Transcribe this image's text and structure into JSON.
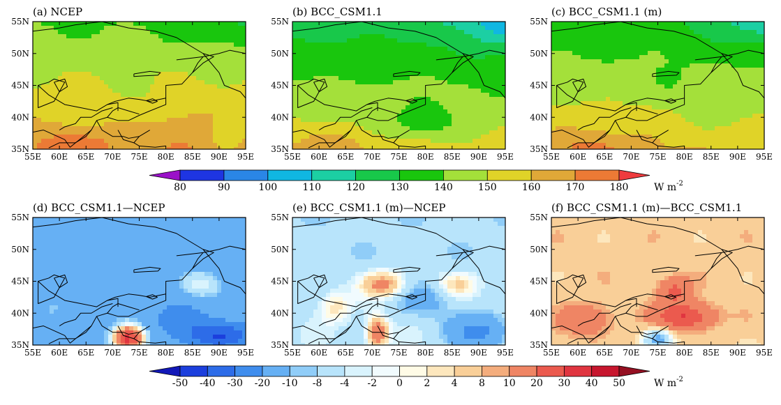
{
  "panels": [
    {
      "id": "a",
      "title": "(a)  NCEP",
      "field": "abs",
      "params": {
        "base": 151,
        "lat": -1.25,
        "cold": 10,
        "hot": 14,
        "spec": [
          [
            83,
            37,
            6,
            5,
            7
          ],
          [
            91,
            37,
            3,
            2.5,
            -6
          ],
          [
            74,
            43,
            4,
            3,
            -4
          ]
        ],
        "seed": 1.3
      }
    },
    {
      "id": "b",
      "title": "(b)  BCC_CSM1.1",
      "field": "abs",
      "params": {
        "base": 141,
        "lat": -1.55,
        "cold": 22,
        "hot": 10,
        "spec": [
          [
            80,
            39,
            9,
            3,
            -14
          ],
          [
            93,
            45,
            4,
            3,
            -5
          ]
        ],
        "seed": 2.1
      }
    },
    {
      "id": "c",
      "title": "(c)  BCC_CSM1.1 (m)",
      "field": "abs",
      "params": {
        "base": 146,
        "lat": -1.45,
        "cold": 18,
        "hot": 12,
        "spec": [
          [
            88,
            41,
            10,
            5,
            -6
          ],
          [
            78,
            45,
            5,
            3,
            -4
          ]
        ],
        "seed": 3.7
      }
    },
    {
      "id": "d",
      "title": "(d)  BCC_CSM1.1—NCEP",
      "field": "diff",
      "params": {
        "base": -15,
        "lat": 0,
        "cold": 0,
        "hot": 0,
        "spec": [
          [
            87,
            44.5,
            4,
            2.2,
            13
          ],
          [
            73,
            36,
            3,
            2,
            48
          ],
          [
            90,
            36.5,
            6,
            2,
            -25
          ],
          [
            60,
            41,
            4,
            3,
            5
          ],
          [
            83,
            39,
            6,
            2.5,
            -8
          ]
        ],
        "seed": 4.2
      }
    },
    {
      "id": "e",
      "title": "(e)  BCC_CSM1.1 (m)—NCEP",
      "field": "diff",
      "params": {
        "base": -6,
        "lat": -0.1,
        "cold": 0,
        "hot": 0,
        "spec": [
          [
            72,
            44.5,
            4,
            2,
            18
          ],
          [
            86,
            44.5,
            4,
            2,
            10
          ],
          [
            63,
            41,
            3,
            2.5,
            9
          ],
          [
            71,
            37,
            2,
            2.5,
            22
          ],
          [
            90,
            37,
            5,
            2.5,
            -18
          ],
          [
            80,
            42,
            6,
            3,
            -6
          ]
        ],
        "seed": 5.9
      }
    },
    {
      "id": "f",
      "title": "(f)  BCC_CSM1.1 (m)—BCC_CSM1.1",
      "field": "diff",
      "params": {
        "base": 6,
        "lat": 0,
        "cold": 0,
        "hot": 0,
        "spec": [
          [
            80,
            39.5,
            5,
            2,
            25
          ],
          [
            78,
            43.5,
            3,
            2,
            16
          ],
          [
            62,
            39,
            5,
            2.5,
            10
          ],
          [
            75,
            36,
            3,
            1.8,
            -18
          ],
          [
            92,
            36,
            4,
            2,
            -2
          ]
        ],
        "seed": 7.1
      }
    }
  ],
  "axes": {
    "xticks": [
      "55E",
      "60E",
      "65E",
      "70E",
      "75E",
      "80E",
      "85E",
      "90E",
      "95E"
    ],
    "yticks": [
      "55N",
      "50N",
      "45N",
      "40N",
      "35N"
    ],
    "lon_range": [
      55,
      95
    ],
    "lat_range": [
      35,
      55
    ]
  },
  "colorbar_abs": {
    "labels": [
      "80",
      "90",
      "100",
      "110",
      "120",
      "130",
      "140",
      "150",
      "160",
      "170",
      "180"
    ],
    "colors": [
      "#9a11c8",
      "#1e35e2",
      "#2a86e6",
      "#10b7e2",
      "#1ccfa3",
      "#18c84a",
      "#19c60d",
      "#a4e03a",
      "#e0d328",
      "#e0a838",
      "#ec7a35",
      "#ef3b3e"
    ],
    "unit": "W m",
    "unit_sup": "-2"
  },
  "colorbar_diff": {
    "labels": [
      "-50",
      "-40",
      "-30",
      "-20",
      "-10",
      "-8",
      "-4",
      "-2",
      "0",
      "2",
      "4",
      "8",
      "10",
      "20",
      "30",
      "40",
      "50"
    ],
    "colors": [
      "#1218b8",
      "#1c3fdd",
      "#2d6ce8",
      "#3f8ded",
      "#66b0f4",
      "#90cdf8",
      "#b8e4fb",
      "#d9f3fd",
      "#f1fbfe",
      "#fffbe6",
      "#fde7bd",
      "#f9cf98",
      "#f4ad7d",
      "#ef8564",
      "#eb5a4e",
      "#e03540",
      "#c7162e",
      "#951022"
    ],
    "unit": "W m",
    "unit_sup": "-2"
  }
}
